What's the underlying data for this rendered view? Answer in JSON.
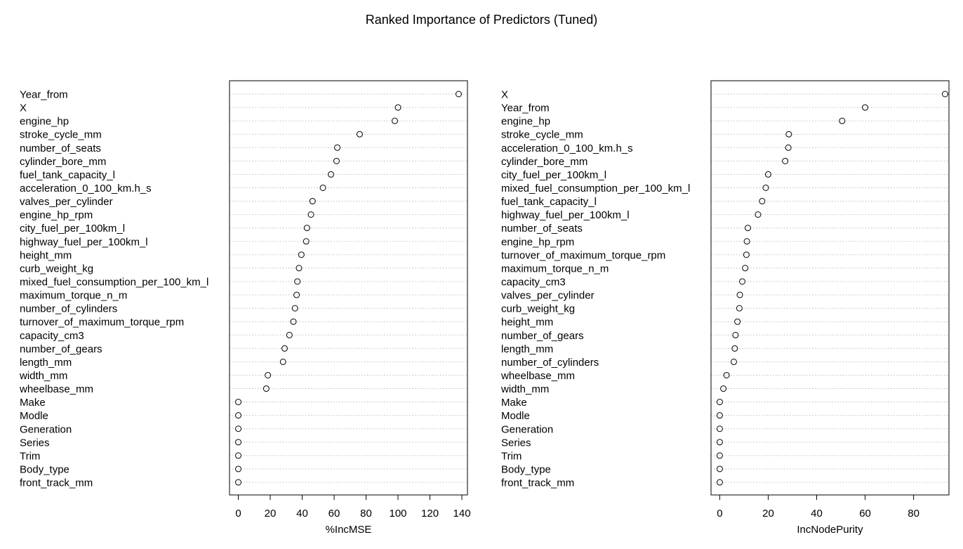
{
  "title": "Ranked Importance of Predictors (Tuned)",
  "colors": {
    "foreground": "#000000",
    "gridline": "#bebebe",
    "background": "#ffffff"
  },
  "chart_data": [
    {
      "type": "scatter",
      "variant": "dotchart",
      "xlabel": "%IncMSE",
      "xlim": [
        -5.5,
        143.5
      ],
      "xticks": [
        0,
        20,
        40,
        60,
        80,
        100,
        120,
        140
      ],
      "grid": "dotted horizontal guides per row",
      "categories": [
        "Year_from",
        "X",
        "engine_hp",
        "stroke_cycle_mm",
        "number_of_seats",
        "cylinder_bore_mm",
        "fuel_tank_capacity_l",
        "acceleration_0_100_km.h_s",
        "valves_per_cylinder",
        "engine_hp_rpm",
        "city_fuel_per_100km_l",
        "highway_fuel_per_100km_l",
        "height_mm",
        "curb_weight_kg",
        "mixed_fuel_consumption_per_100_km_l",
        "maximum_torque_n_m",
        "number_of_cylinders",
        "turnover_of_maximum_torque_rpm",
        "capacity_cm3",
        "number_of_gears",
        "length_mm",
        "width_mm",
        "wheelbase_mm",
        "Make",
        "Modle",
        "Generation",
        "Series",
        "Trim",
        "Body_type",
        "front_track_mm"
      ],
      "values": [
        138,
        100,
        98,
        76,
        62,
        61.5,
        58,
        53,
        46.5,
        45.5,
        43,
        42.5,
        39.5,
        38,
        37,
        36.5,
        35.5,
        34.5,
        32,
        29,
        28,
        18.5,
        17.5,
        0,
        0,
        0,
        0,
        0,
        0,
        0
      ]
    },
    {
      "type": "scatter",
      "variant": "dotchart",
      "xlabel": "IncNodePurity",
      "xlim": [
        -3.6,
        94.6
      ],
      "xticks": [
        0,
        20,
        40,
        60,
        80
      ],
      "grid": "dotted horizontal guides per row",
      "categories": [
        "X",
        "Year_from",
        "engine_hp",
        "stroke_cycle_mm",
        "acceleration_0_100_km.h_s",
        "cylinder_bore_mm",
        "city_fuel_per_100km_l",
        "mixed_fuel_consumption_per_100_km_l",
        "fuel_tank_capacity_l",
        "highway_fuel_per_100km_l",
        "number_of_seats",
        "engine_hp_rpm",
        "turnover_of_maximum_torque_rpm",
        "maximum_torque_n_m",
        "capacity_cm3",
        "valves_per_cylinder",
        "curb_weight_kg",
        "height_mm",
        "number_of_gears",
        "length_mm",
        "number_of_cylinders",
        "wheelbase_mm",
        "width_mm",
        "Make",
        "Modle",
        "Generation",
        "Series",
        "Trim",
        "Body_type",
        "front_track_mm"
      ],
      "values": [
        93,
        60,
        50.5,
        28.5,
        28.3,
        27,
        20,
        19,
        17.5,
        15.8,
        11.6,
        11.2,
        11,
        10.5,
        9.3,
        8.3,
        8.1,
        7.3,
        6.5,
        6.2,
        5.8,
        2.8,
        1.5,
        0,
        0,
        0,
        0,
        0,
        0,
        0
      ]
    }
  ]
}
